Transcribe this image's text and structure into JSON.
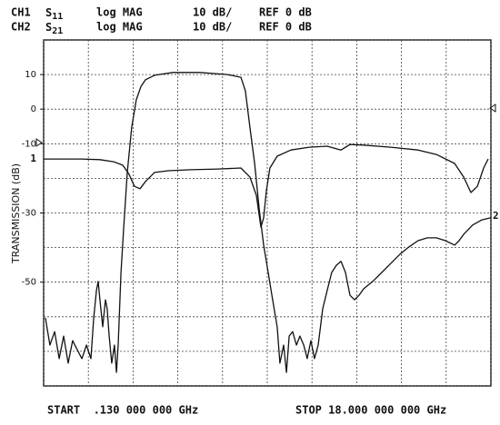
{
  "chart_data": {
    "type": "line",
    "header": [
      {
        "channel": "CH1",
        "param": "S",
        "sub": "11",
        "format": "log MAG",
        "scale": "10 dB/",
        "ref": "REF 0 dB"
      },
      {
        "channel": "CH2",
        "param": "S",
        "sub": "21",
        "format": "log MAG",
        "scale": "10 dB/",
        "ref": "REF 0 dB"
      }
    ],
    "y_label": "TRANSMISSION (dB)",
    "start_label": "START  .130 000 000 GHz",
    "stop_label": "STOP 18.000 000 000 GHz",
    "trace_markers": [
      "1",
      "2"
    ],
    "xlim": [
      0.13,
      18
    ],
    "ylim": [
      -80,
      20
    ],
    "yticks": [
      10,
      0,
      -10,
      -30,
      -50
    ],
    "xgrid": [
      0.13,
      1.917,
      3.704,
      5.491,
      7.278,
      9.065,
      10.852,
      12.639,
      14.426,
      16.213,
      18
    ],
    "ygrid": [
      20,
      10,
      0,
      -10,
      -20,
      -30,
      -40,
      -50,
      -60,
      -70,
      -80
    ],
    "grid": true,
    "series": [
      {
        "color": "#111111",
        "x": [
          0.2,
          0.38,
          0.57,
          0.75,
          0.93,
          1.11,
          1.29,
          1.47,
          1.66,
          1.84,
          2.02,
          2.13,
          2.24,
          2.31,
          2.38,
          2.49,
          2.6,
          2.67,
          2.75,
          2.85,
          2.96,
          3.04,
          3.11,
          3.22,
          3.33,
          3.47,
          3.65,
          3.83,
          4.02,
          4.2,
          4.56,
          5.29,
          6.38,
          7.47,
          8.01,
          8.19,
          8.37,
          8.56,
          8.74,
          8.92,
          9.1,
          9.28,
          9.46,
          9.57,
          9.72,
          9.83,
          9.94,
          10.08,
          10.23,
          10.37,
          10.52,
          10.66,
          10.81,
          10.95,
          11.1,
          11.28,
          11.46,
          11.64,
          11.83,
          12.01,
          12.19,
          12.37,
          12.55,
          12.73,
          12.92,
          13.28,
          13.64,
          14.0,
          14.37,
          14.73,
          15.09,
          15.46,
          15.82,
          16.18,
          16.55,
          16.73,
          16.91,
          17.27,
          17.64,
          18.0
        ],
        "values": [
          -60.3,
          -68.2,
          -64.3,
          -72.1,
          -65.6,
          -73.4,
          -66.9,
          -69.5,
          -72.1,
          -68.2,
          -72.1,
          -60.3,
          -52.4,
          -49.8,
          -55.1,
          -62.9,
          -55.1,
          -57.7,
          -65.6,
          -73.4,
          -68.2,
          -76.1,
          -68.2,
          -47.2,
          -34.1,
          -18.3,
          -5.2,
          2.7,
          6.6,
          8.5,
          9.8,
          10.6,
          10.6,
          10.0,
          9.2,
          5.3,
          -5.2,
          -15.7,
          -28.8,
          -39.3,
          -47.2,
          -55.1,
          -62.9,
          -73.4,
          -68.2,
          -76.1,
          -65.6,
          -64.3,
          -68.2,
          -65.6,
          -68.2,
          -72.1,
          -66.9,
          -72.1,
          -68.2,
          -57.7,
          -52.4,
          -47.2,
          -45.1,
          -44.0,
          -47.2,
          -53.8,
          -55.1,
          -53.8,
          -51.9,
          -49.8,
          -47.2,
          -44.6,
          -41.9,
          -39.8,
          -38.0,
          -37.2,
          -37.2,
          -38.0,
          -39.3,
          -38.0,
          -36.2,
          -33.5,
          -32.0,
          -31.4
        ]
      },
      {
        "color": "#111111",
        "x": [
          0.13,
          1.66,
          2.38,
          2.93,
          3.29,
          3.54,
          3.76,
          3.98,
          4.2,
          4.56,
          5.11,
          6.01,
          7.1,
          8.01,
          8.37,
          8.63,
          8.81,
          8.92,
          9.03,
          9.17,
          9.46,
          10.01,
          10.74,
          11.46,
          12.01,
          12.37,
          12.92,
          14.0,
          15.09,
          15.82,
          16.55,
          16.91,
          17.2,
          17.46,
          17.71,
          17.89
        ],
        "values": [
          -14.4,
          -14.4,
          -14.6,
          -15.2,
          -16.2,
          -18.8,
          -22.3,
          -23.0,
          -20.9,
          -18.3,
          -17.8,
          -17.5,
          -17.3,
          -17.0,
          -19.6,
          -24.9,
          -34.1,
          -31.4,
          -23.6,
          -17.0,
          -13.6,
          -11.8,
          -11.0,
          -10.7,
          -11.8,
          -10.2,
          -10.4,
          -11.0,
          -11.8,
          -13.1,
          -15.7,
          -19.6,
          -24.1,
          -22.3,
          -17.0,
          -14.4
        ]
      }
    ]
  }
}
